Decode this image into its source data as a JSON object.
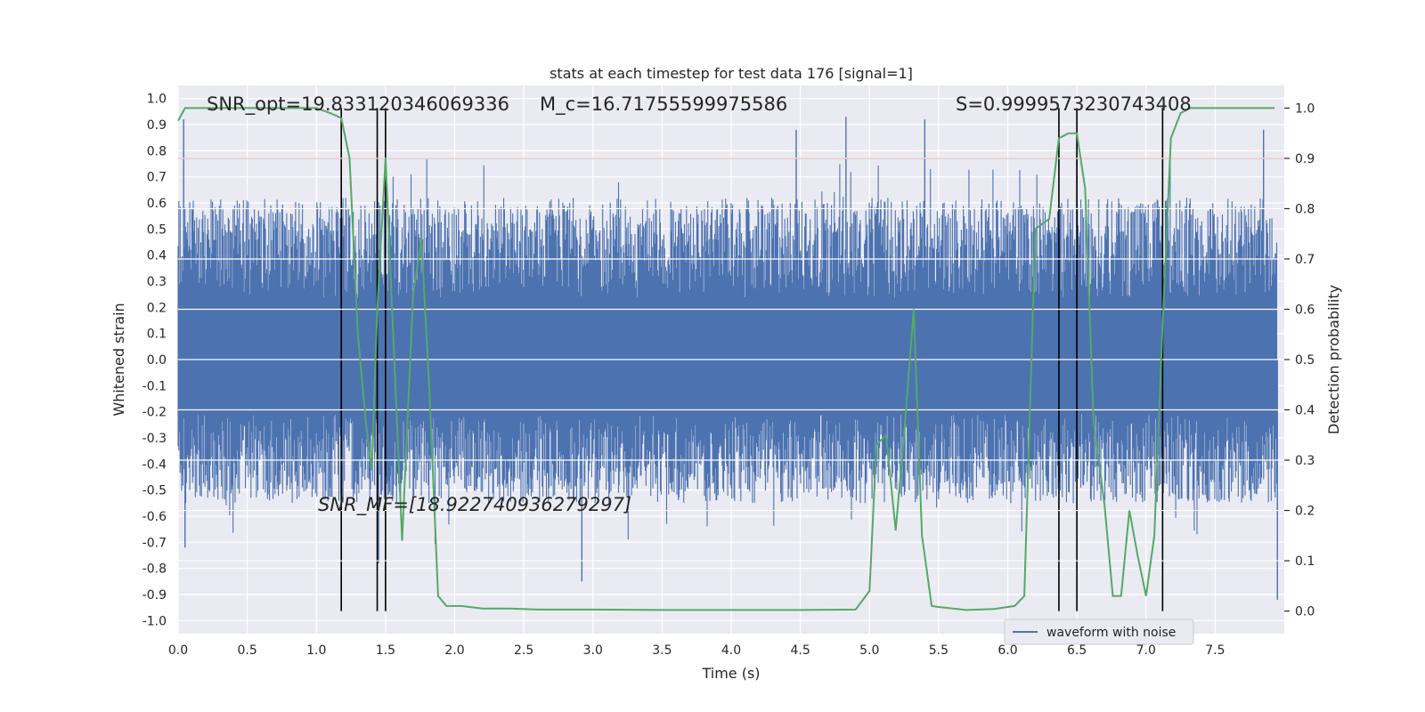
{
  "chart_data": {
    "type": "line",
    "title": "stats at each timestep for test data 176 [signal=1]",
    "xlabel": "Time (s)",
    "ylabel_left": "Whitened strain",
    "ylabel_right": "Detection probability",
    "xlim": [
      0.0,
      8.0
    ],
    "ylim_left": [
      -1.05,
      1.05
    ],
    "ylim_right": [
      -0.045,
      1.045
    ],
    "x_ticks": [
      "0.0",
      "0.5",
      "1.0",
      "1.5",
      "2.0",
      "2.5",
      "3.0",
      "3.5",
      "4.0",
      "4.5",
      "5.0",
      "5.5",
      "6.0",
      "6.5",
      "7.0",
      "7.5"
    ],
    "x_tick_values": [
      0.0,
      0.5,
      1.0,
      1.5,
      2.0,
      2.5,
      3.0,
      3.5,
      4.0,
      4.5,
      5.0,
      5.5,
      6.0,
      6.5,
      7.0,
      7.5
    ],
    "y_left_ticks": [
      "1.0",
      "0.9",
      "0.8",
      "0.7",
      "0.6",
      "0.5",
      "0.4",
      "0.3",
      "0.2",
      "0.1",
      "0.0",
      "-0.1",
      "-0.2",
      "-0.3",
      "-0.4",
      "-0.5",
      "-0.6",
      "-0.7",
      "-0.8",
      "-0.9",
      "-1.0"
    ],
    "y_left_tick_values": [
      1.0,
      0.9,
      0.8,
      0.7,
      0.6,
      0.5,
      0.4,
      0.3,
      0.2,
      0.1,
      0.0,
      -0.1,
      -0.2,
      -0.3,
      -0.4,
      -0.5,
      -0.6,
      -0.7,
      -0.8,
      -0.9,
      -1.0
    ],
    "y_right_ticks": [
      "1.0",
      "0.9",
      "0.8",
      "0.7",
      "0.6",
      "0.5",
      "0.4",
      "0.3",
      "0.2",
      "0.1",
      "0.0"
    ],
    "y_right_tick_values": [
      1.0,
      0.9,
      0.8,
      0.7,
      0.6,
      0.5,
      0.4,
      0.3,
      0.2,
      0.1,
      0.0
    ],
    "legend": {
      "label": "waveform with noise",
      "location": "lower-right"
    },
    "threshold_probability": 0.9,
    "vertical_markers": [
      1.18,
      1.44,
      1.5,
      6.37,
      6.5,
      7.12
    ],
    "annotations": {
      "snr_opt": "SNR_opt=19.833120346069336",
      "mc": "M_c=16.71755599975586",
      "s": "S=0.9999573230743408",
      "snr_mf": "SNR_MF=[18.922740936279297]"
    },
    "waveform": {
      "name": "waveform with noise",
      "sample_count": 1600,
      "envelope_positive": 0.62,
      "envelope_negative": -0.55,
      "spikes": [
        [
          0.04,
          0.92
        ],
        [
          0.05,
          -0.72
        ],
        [
          1.45,
          -0.78
        ],
        [
          2.92,
          -0.85
        ],
        [
          4.47,
          0.88
        ],
        [
          4.83,
          0.93
        ],
        [
          5.4,
          0.92
        ],
        [
          6.5,
          0.86
        ],
        [
          7.85,
          0.88
        ],
        [
          7.95,
          -0.92
        ]
      ]
    },
    "series": [
      {
        "name": "detection probability",
        "color": "#55a868",
        "x": [
          0.0,
          0.05,
          0.1,
          0.2,
          0.4,
          0.6,
          0.8,
          1.0,
          1.1,
          1.18,
          1.24,
          1.3,
          1.36,
          1.4,
          1.44,
          1.5,
          1.56,
          1.62,
          1.7,
          1.76,
          1.82,
          1.88,
          1.94,
          2.05,
          2.2,
          2.4,
          2.6,
          2.8,
          3.0,
          3.5,
          4.0,
          4.5,
          4.9,
          5.0,
          5.05,
          5.12,
          5.19,
          5.25,
          5.32,
          5.38,
          5.45,
          5.5,
          5.7,
          5.9,
          6.05,
          6.12,
          6.2,
          6.3,
          6.37,
          6.44,
          6.5,
          6.56,
          6.62,
          6.7,
          6.76,
          6.82,
          6.88,
          6.94,
          7.0,
          7.06,
          7.12,
          7.18,
          7.25,
          7.32,
          7.4,
          7.6,
          7.8,
          7.93
        ],
        "values": [
          0.975,
          1.0,
          1.0,
          1.0,
          1.0,
          1.0,
          1.0,
          1.0,
          0.99,
          0.98,
          0.9,
          0.55,
          0.37,
          0.28,
          0.6,
          0.9,
          0.52,
          0.14,
          0.63,
          0.74,
          0.42,
          0.03,
          0.01,
          0.01,
          0.005,
          0.005,
          0.003,
          0.003,
          0.003,
          0.002,
          0.002,
          0.002,
          0.003,
          0.04,
          0.33,
          0.35,
          0.16,
          0.35,
          0.6,
          0.15,
          0.01,
          0.008,
          0.002,
          0.004,
          0.01,
          0.03,
          0.76,
          0.78,
          0.94,
          0.95,
          0.95,
          0.84,
          0.38,
          0.21,
          0.03,
          0.03,
          0.2,
          0.11,
          0.03,
          0.15,
          0.57,
          0.94,
          0.99,
          1.0,
          1.0,
          1.0,
          1.0,
          1.0
        ]
      }
    ]
  }
}
